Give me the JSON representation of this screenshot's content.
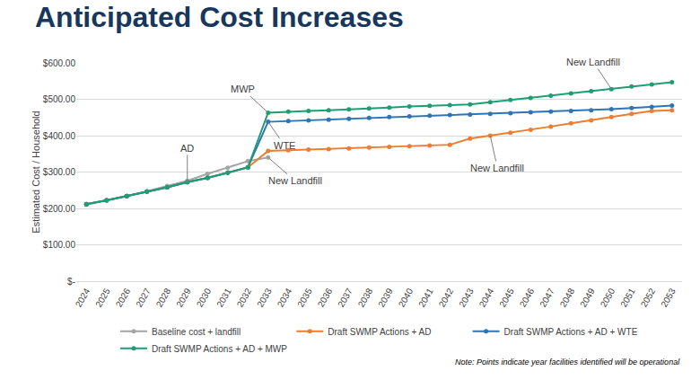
{
  "chart_data": {
    "type": "line",
    "title": "Anticipated Cost Increases",
    "ylabel": "Estimated Cost / Household",
    "note": "Note: Points indicate year facilities identified will be operational",
    "categories": [
      "2024",
      "2025",
      "2026",
      "2027",
      "2028",
      "2029",
      "2030",
      "2031",
      "2032",
      "2033",
      "2034",
      "2035",
      "2036",
      "2037",
      "2038",
      "2039",
      "2040",
      "2041",
      "2042",
      "2043",
      "2044",
      "2045",
      "2046",
      "2047",
      "2048",
      "2049",
      "2050",
      "2051",
      "2052",
      "2053"
    ],
    "series": [
      {
        "name": "Baseline cost + landfill",
        "color": "#a5a5a5",
        "values": [
          210,
          222,
          234,
          247,
          262,
          276,
          295,
          312,
          330,
          340,
          null,
          null,
          null,
          null,
          null,
          null,
          null,
          null,
          null,
          null,
          null,
          null,
          null,
          null,
          null,
          null,
          null,
          null,
          null,
          null
        ]
      },
      {
        "name": "Draft SWMP Actions + AD",
        "color": "#ed7d31",
        "values": [
          212,
          222,
          234,
          246,
          258,
          272,
          284,
          298,
          313,
          358,
          360,
          362,
          363,
          365,
          367,
          369,
          371,
          373,
          375,
          392,
          400,
          408,
          416,
          425,
          434,
          442,
          451,
          460,
          468,
          470
        ]
      },
      {
        "name": "Draft SWMP Actions + AD + WTE",
        "color": "#2e75b6",
        "values": [
          212,
          222,
          234,
          246,
          258,
          272,
          284,
          298,
          313,
          438,
          440,
          442,
          444,
          446,
          449,
          451,
          453,
          455,
          457,
          458,
          460,
          462,
          464,
          466,
          468,
          470,
          473,
          476,
          479,
          483
        ]
      },
      {
        "name": "Draft SWMP Actions + AD + MWP",
        "color": "#1e9e74",
        "values": [
          212,
          222,
          234,
          246,
          258,
          272,
          284,
          298,
          313,
          463,
          466,
          468,
          470,
          472,
          475,
          477,
          480,
          482,
          484,
          486,
          492,
          498,
          504,
          510,
          516,
          522,
          528,
          535,
          541,
          547
        ]
      }
    ],
    "annotations": [
      {
        "text": "AD",
        "x": "2029",
        "y": 272
      },
      {
        "text": "MWP",
        "x": "2033",
        "y": 463
      },
      {
        "text": "WTE",
        "x": "2033",
        "y": 438
      },
      {
        "text": "New Landfill",
        "x": "2033",
        "y": 340
      },
      {
        "text": "New Landfill",
        "x": "2044",
        "y": 400
      },
      {
        "text": "New Landfill",
        "x": "2050",
        "y": 528
      }
    ],
    "ylim": [
      0,
      600
    ],
    "yticks": [
      {
        "value": 0,
        "label": "$-"
      },
      {
        "value": 100,
        "label": "$100.00"
      },
      {
        "value": 200,
        "label": "$200.00"
      },
      {
        "value": 300,
        "label": "$300.00"
      },
      {
        "value": 400,
        "label": "$400.00"
      },
      {
        "value": 500,
        "label": "$500.00"
      },
      {
        "value": 600,
        "label": "$600.00"
      }
    ],
    "grid": true,
    "legend": "bottom",
    "marker": "circle"
  }
}
